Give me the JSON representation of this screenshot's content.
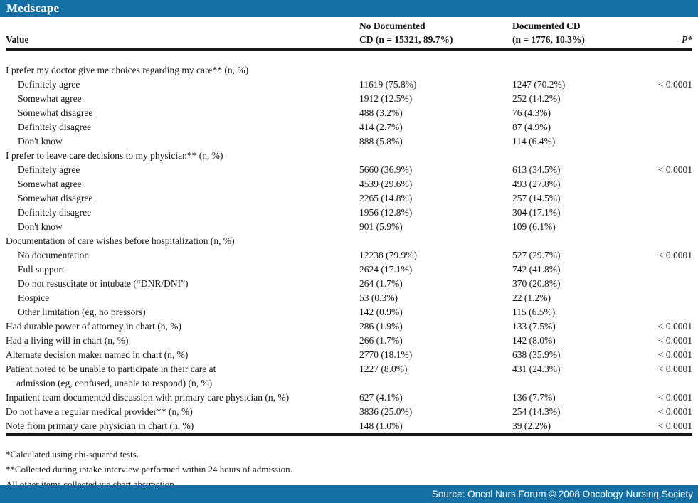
{
  "brand": {
    "logo": "Medscape"
  },
  "colors": {
    "bar_blue": "#1470a4",
    "rule_black": "#161616",
    "text": "#161616",
    "background": "#ffffff"
  },
  "table": {
    "columns": {
      "value": "Value",
      "no_cd_line1": "No Documented",
      "no_cd_line2": "CD (n = 15321, 89.7%)",
      "cd_line1": "Documented CD",
      "cd_line2": "(n = 1776, 10.3%)",
      "p": "P*"
    },
    "rows": [
      {
        "label": "I prefer my doctor give me choices regarding my care** (n, %)",
        "indent": false,
        "no_cd": "",
        "cd": "",
        "p": ""
      },
      {
        "label": "Definitely agree",
        "indent": true,
        "no_cd": "11619 (75.8%)",
        "cd": "1247 (70.2%)",
        "p": "< 0.0001"
      },
      {
        "label": "Somewhat agree",
        "indent": true,
        "no_cd": "1912 (12.5%)",
        "cd": "252 (14.2%)",
        "p": ""
      },
      {
        "label": "Somewhat disagree",
        "indent": true,
        "no_cd": "488 (3.2%)",
        "cd": "76 (4.3%)",
        "p": ""
      },
      {
        "label": "Definitely disagree",
        "indent": true,
        "no_cd": "414 (2.7%)",
        "cd": "87 (4.9%)",
        "p": ""
      },
      {
        "label": "Don't know",
        "indent": true,
        "no_cd": "888 (5.8%)",
        "cd": "114 (6.4%)",
        "p": ""
      },
      {
        "label": "I prefer to leave care decisions to my physician** (n, %)",
        "indent": false,
        "no_cd": "",
        "cd": "",
        "p": ""
      },
      {
        "label": "Definitely agree",
        "indent": true,
        "no_cd": "5660 (36.9%)",
        "cd": "613 (34.5%)",
        "p": "< 0.0001"
      },
      {
        "label": "Somewhat agree",
        "indent": true,
        "no_cd": "4539 (29.6%)",
        "cd": "493 (27.8%)",
        "p": ""
      },
      {
        "label": "Somewhat disagree",
        "indent": true,
        "no_cd": "2265 (14.8%)",
        "cd": "257 (14.5%)",
        "p": ""
      },
      {
        "label": "Definitely disagree",
        "indent": true,
        "no_cd": "1956 (12.8%)",
        "cd": "304 (17.1%)",
        "p": ""
      },
      {
        "label": "Don't know",
        "indent": true,
        "no_cd": "901 (5.9%)",
        "cd": "109 (6.1%)",
        "p": ""
      },
      {
        "label": "Documentation of care wishes before hospitalization (n, %)",
        "indent": false,
        "no_cd": "",
        "cd": "",
        "p": ""
      },
      {
        "label": "No documentation",
        "indent": true,
        "no_cd": "12238 (79.9%)",
        "cd": "527 (29.7%)",
        "p": "< 0.0001"
      },
      {
        "label": "Full support",
        "indent": true,
        "no_cd": "2624 (17.1%)",
        "cd": "742 (41.8%)",
        "p": ""
      },
      {
        "label": "Do not resuscitate or intubate (“DNR/DNI”)",
        "indent": true,
        "no_cd": "264 (1.7%)",
        "cd": "370 (20.8%)",
        "p": ""
      },
      {
        "label": "Hospice",
        "indent": true,
        "no_cd": "53 (0.3%)",
        "cd": "22 (1.2%)",
        "p": ""
      },
      {
        "label": "Other limitation (eg, no pressors)",
        "indent": true,
        "no_cd": "142 (0.9%)",
        "cd": "115 (6.5%)",
        "p": ""
      },
      {
        "label": "Had durable power of attorney in chart (n, %)",
        "indent": false,
        "no_cd": "286 (1.9%)",
        "cd": "133 (7.5%)",
        "p": "< 0.0001"
      },
      {
        "label": "Had a living will in chart (n, %)",
        "indent": false,
        "no_cd": "266 (1.7%)",
        "cd": "142 (8.0%)",
        "p": "< 0.0001"
      },
      {
        "label": "Alternate decision maker named in chart (n, %)",
        "indent": false,
        "no_cd": "2770 (18.1%)",
        "cd": "638 (35.9%)",
        "p": "< 0.0001"
      },
      {
        "label": "Patient noted to be unable to participate in their care at",
        "label2": "admission (eg, confused, unable to respond) (n, %)",
        "indent": false,
        "no_cd": "1227 (8.0%)",
        "cd": "431 (24.3%)",
        "p": "< 0.0001"
      },
      {
        "label": "Inpatient team documented discussion with primary care physician (n, %)",
        "indent": false,
        "no_cd": "627 (4.1%)",
        "cd": "136 (7.7%)",
        "p": "< 0.0001"
      },
      {
        "label": "Do not have a regular medical provider** (n, %)",
        "indent": false,
        "no_cd": "3836 (25.0%)",
        "cd": "254 (14.3%)",
        "p": "< 0.0001"
      },
      {
        "label": "Note from primary care physician in chart (n, %)",
        "indent": false,
        "no_cd": "148 (1.0%)",
        "cd": "39 (2.2%)",
        "p": "< 0.0001"
      }
    ]
  },
  "footnotes": [
    "*Calculated using chi-squared tests.",
    "**Collected during intake interview performed within 24 hours of admission.",
    "All other items collected via chart abstraction."
  ],
  "footer": {
    "source": "Source: Oncol Nurs Forum © 2008 Oncology Nursing Society"
  }
}
